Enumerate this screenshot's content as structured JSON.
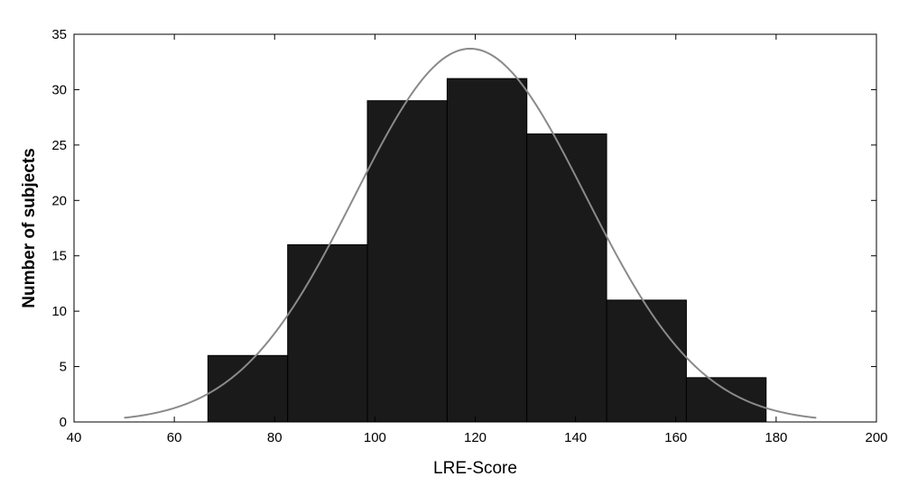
{
  "chart_data": {
    "type": "bar",
    "subtype": "histogram",
    "title": "",
    "xlabel": "LRE-Score",
    "ylabel": "Number of subjects",
    "xlim": [
      40,
      200
    ],
    "ylim": [
      0,
      35
    ],
    "xticks": [
      40,
      60,
      80,
      100,
      120,
      140,
      160,
      180,
      200
    ],
    "yticks": [
      0,
      5,
      10,
      15,
      20,
      25,
      30,
      35
    ],
    "grid": false,
    "legend": "none",
    "bins": [
      {
        "x0": 66.7,
        "x1": 82.6,
        "value": 6
      },
      {
        "x0": 82.6,
        "x1": 98.5,
        "value": 16
      },
      {
        "x0": 98.5,
        "x1": 114.4,
        "value": 29
      },
      {
        "x0": 114.4,
        "x1": 130.3,
        "value": 31
      },
      {
        "x0": 130.3,
        "x1": 146.2,
        "value": 26
      },
      {
        "x0": 146.2,
        "x1": 162.1,
        "value": 11
      },
      {
        "x0": 162.1,
        "x1": 178.0,
        "value": 4
      }
    ],
    "fit_curve": {
      "type": "normal",
      "mean": 119,
      "sd": 23,
      "peak": 33.7,
      "x_range": [
        50,
        188
      ]
    },
    "colors": {
      "bar_fill": "#1a1a1a",
      "bar_edge": "#000000",
      "curve": "#8a8a8a",
      "axis": "#000000"
    }
  }
}
